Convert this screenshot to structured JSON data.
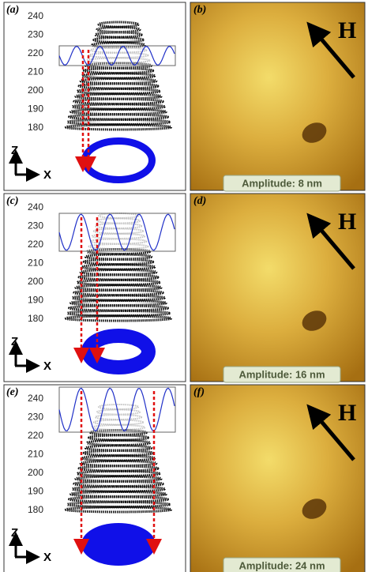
{
  "panels": [
    {
      "schematic": {
        "label": "(a)",
        "ticks": [
          240,
          230,
          220,
          210,
          200,
          190,
          180
        ],
        "axis_z": "Z",
        "axis_x": "X"
      },
      "image": {
        "label": "(b)",
        "field": "H",
        "amplitude": "Amplitude: 8 nm"
      }
    },
    {
      "schematic": {
        "label": "(c)",
        "ticks": [
          240,
          230,
          220,
          210,
          200,
          190,
          180
        ],
        "axis_z": "Z",
        "axis_x": "X"
      },
      "image": {
        "label": "(d)",
        "field": "H",
        "amplitude": "Amplitude: 16 nm"
      }
    },
    {
      "schematic": {
        "label": "(e)",
        "ticks": [
          240,
          230,
          220,
          210,
          200,
          190,
          180
        ],
        "axis_z": "Z",
        "axis_x": "X"
      },
      "image": {
        "label": "(f)",
        "field": "H",
        "amplitude": "Amplitude: 24 nm"
      }
    }
  ]
}
